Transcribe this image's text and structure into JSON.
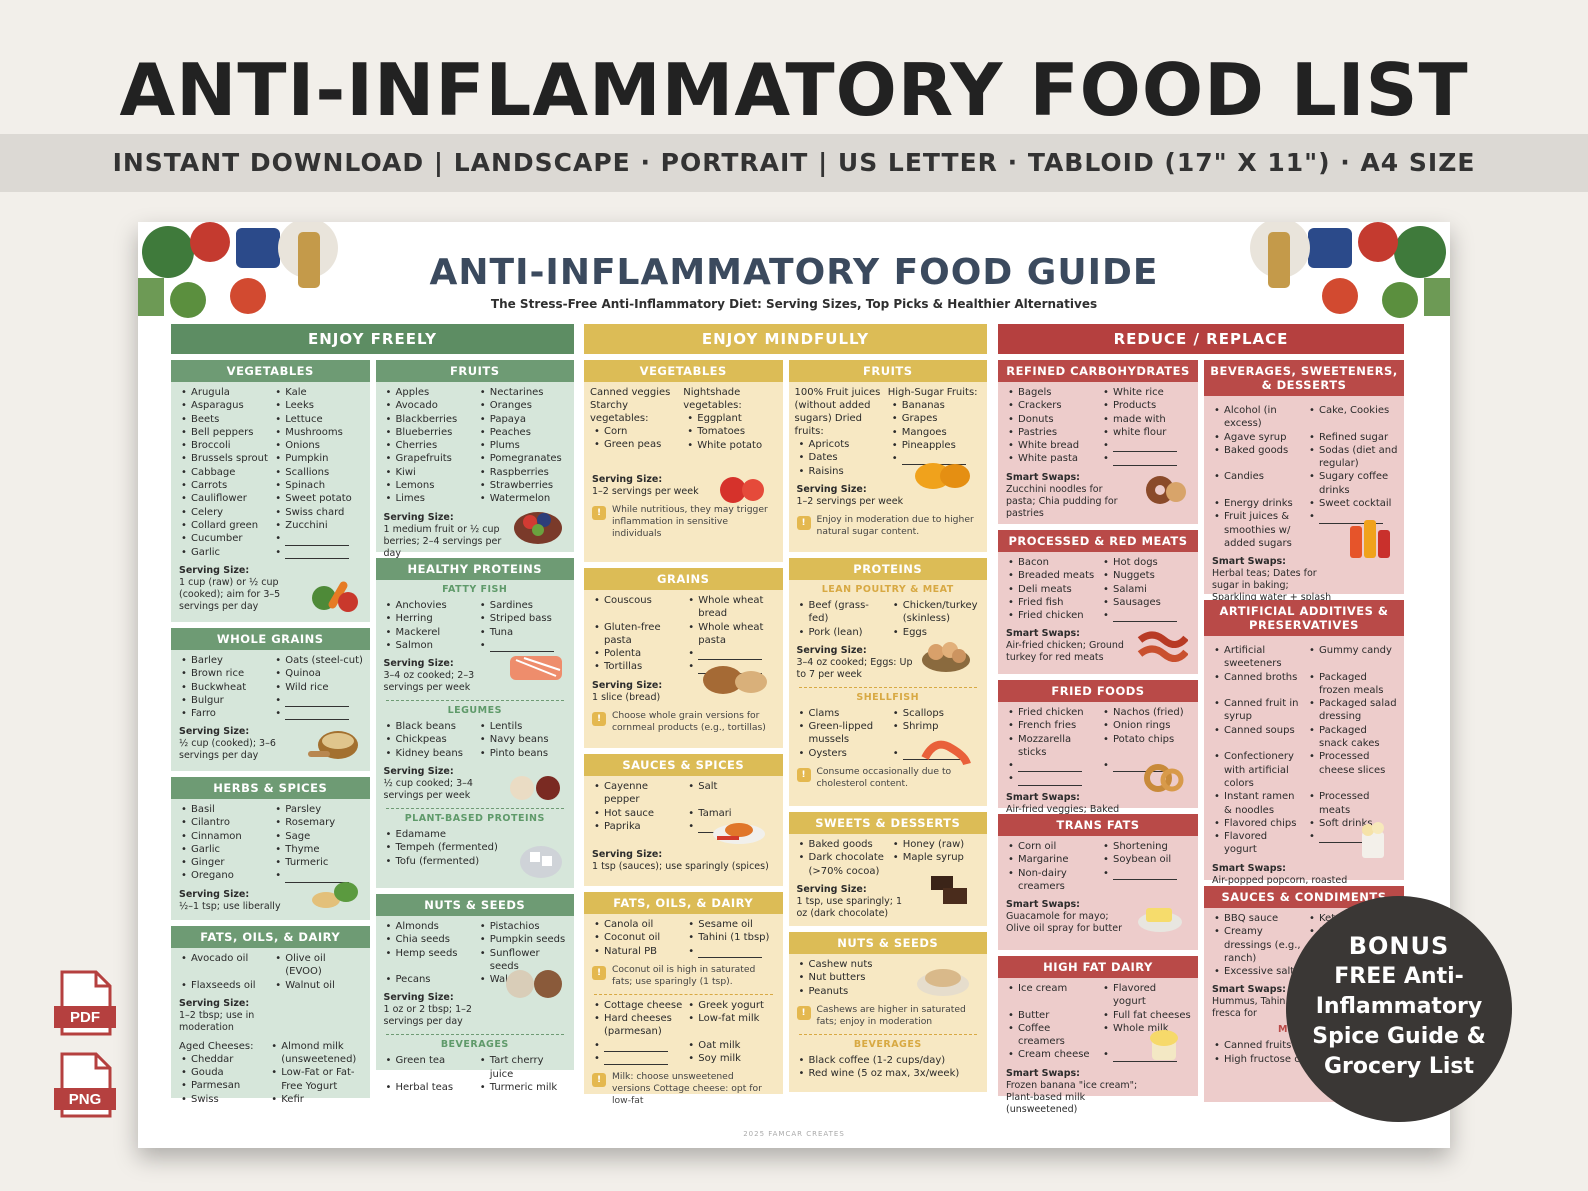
{
  "banner": {
    "title": "ANTI-INFLAMMATORY FOOD LIST",
    "subtitle": "INSTANT DOWNLOAD  |  LANDSCAPE · PORTRAIT  |  US LETTER · TABLOID (17\" X 11\") · A4 SIZE"
  },
  "guide": {
    "title": "ANTI-INFLAMMATORY FOOD GUIDE",
    "subtitle": "The Stress-Free Anti-Inflammatory Diet:  Serving Sizes, Top Picks & Healthier Alternatives",
    "footer": "2025 FAMCAR CREATES"
  },
  "enjoy_freely": {
    "header": "ENJOY FREELY",
    "vegetables": {
      "title": "VEGETABLES",
      "items": [
        "Arugula",
        "Kale",
        "Asparagus",
        "Leeks",
        "Beets",
        "Lettuce",
        "Bell peppers",
        "Mushrooms",
        "Broccoli",
        "Onions",
        "Brussels sprout",
        "Pumpkin",
        "Cabbage",
        "Scallions",
        "Carrots",
        "Spinach",
        "Cauliflower",
        "Sweet potato",
        "Celery",
        "Swiss chard",
        "Collard green",
        "Zucchini",
        "Cucumber",
        "",
        "Garlic",
        ""
      ],
      "serving_label": "Serving Size:",
      "serving": "1 cup (raw) or ½ cup (cooked); aim for 3–5 servings per day"
    },
    "whole_grains": {
      "title": "WHOLE GRAINS",
      "items": [
        "Barley",
        "Oats (steel-cut)",
        "Brown rice",
        "Quinoa",
        "Buckwheat",
        "Wild rice",
        "Bulgur",
        "",
        "Farro",
        ""
      ],
      "serving_label": "Serving Size:",
      "serving": "½ cup (cooked); 3–6 servings per day"
    },
    "herbs": {
      "title": "HERBS & SPICES",
      "items": [
        "Basil",
        "Parsley",
        "Cilantro",
        "Rosemary",
        "Cinnamon",
        "Sage",
        "Garlic",
        "Thyme",
        "Ginger",
        "Turmeric",
        "Oregano",
        ""
      ],
      "serving_label": "Serving Size:",
      "serving": "½–1 tsp; use liberally"
    },
    "fats": {
      "title": "FATS, OILS, & DAIRY",
      "items": [
        "Avocado oil",
        "Olive oil (EVOO)",
        "Flaxseeds oil",
        "Walnut oil"
      ],
      "serving_label": "Serving Size:",
      "serving": "1–2 tbsp; use in moderation",
      "aged_label": "Aged Cheeses:",
      "aged": [
        "Cheddar",
        "Gouda",
        "Parmesan",
        "Swiss"
      ],
      "milks": [
        "Almond milk (unsweetened)",
        "Low-Fat or Fat-Free Yogurt",
        "Kefir"
      ]
    },
    "fruits": {
      "title": "FRUITS",
      "items": [
        "Apples",
        "Nectarines",
        "Avocado",
        "Oranges",
        "Blackberries",
        "Papaya",
        "Blueberries",
        "Peaches",
        "Cherries",
        "Plums",
        "Grapefruits",
        "Pomegranates",
        "Kiwi",
        "Raspberries",
        "Lemons",
        "Strawberries",
        "Limes",
        "Watermelon"
      ],
      "serving_label": "Serving Size:",
      "serving": "1 medium fruit or ½ cup berries; 2–4 servings per day"
    },
    "proteins": {
      "title": "HEALTHY PROTEINS",
      "fish_label": "FATTY FISH",
      "fish": [
        "Anchovies",
        "Sardines",
        "Herring",
        "Striped bass",
        "Mackerel",
        "Tuna",
        "Salmon",
        ""
      ],
      "fish_serving_label": "Serving Size:",
      "fish_serving": "3–4 oz cooked; 2–3 servings per week",
      "legumes_label": "LEGUMES",
      "legumes": [
        "Black beans",
        "Lentils",
        "Chickpeas",
        "Navy beans",
        "Kidney beans",
        "Pinto beans"
      ],
      "legumes_serving_label": "Serving Size:",
      "legumes_serving": "½ cup cooked; 3–4 servings per week",
      "plant_label": "PLANT-BASED PROTEINS",
      "plant": [
        "Edamame",
        "Tempeh (fermented)",
        "Tofu (fermented)"
      ]
    },
    "nuts": {
      "title": "NUTS & SEEDS",
      "items": [
        "Almonds",
        "Pistachios",
        "Chia seeds",
        "Pumpkin seeds",
        "Hemp seeds",
        "Sunflower seeds",
        "Pecans",
        "Walnuts"
      ],
      "serving_label": "Serving Size:",
      "serving": "1 oz or 2 tbsp; 1–2 servings per day",
      "bev_label": "BEVERAGES",
      "bev": [
        "Green tea",
        "Tart cherry juice",
        "Herbal teas",
        "Turmeric milk"
      ]
    }
  },
  "enjoy_mindfully": {
    "header": "ENJOY MINDFULLY",
    "vegetables": {
      "title": "VEGETABLES",
      "left_head": "Canned veggies Starchy vegetables:",
      "left": [
        "Corn",
        "Green peas"
      ],
      "right_head": "Nightshade vegetables:",
      "right": [
        "Eggplant",
        "Tomatoes",
        "White potato"
      ],
      "serving_label": "Serving Size:",
      "serving": "1–2 servings per week",
      "note": "While nutritious, they may trigger inflammation in sensitive individuals"
    },
    "grains": {
      "title": "GRAINS",
      "items": [
        "Couscous",
        "Whole wheat bread",
        "Gluten-free pasta",
        "Whole wheat pasta",
        "Polenta",
        "",
        "Tortillas",
        ""
      ],
      "serving_label": "Serving Size:",
      "serving": "1 slice (bread)",
      "note": "Choose whole grain versions for cornmeal products (e.g., tortillas)"
    },
    "sauces": {
      "title": "SAUCES & SPICES",
      "items": [
        "Cayenne pepper",
        "Salt",
        "Hot sauce",
        "Tamari",
        "Paprika",
        ""
      ],
      "serving_label": "Serving Size:",
      "serving": "1 tsp (sauces); use sparingly (spices)"
    },
    "fats": {
      "title": "FATS, OILS, & DAIRY",
      "items": [
        "Canola oil",
        "Sesame oil",
        "Coconut oil",
        "Tahini (1 tbsp)",
        "Natural PB",
        ""
      ],
      "note1": "Coconut oil is high in saturated fats; use sparingly (1 tsp).",
      "items2": [
        "Cottage cheese",
        "Greek yogurt",
        "Hard cheeses (parmesan)",
        "Low-fat milk",
        "",
        "Oat milk",
        "",
        "Soy milk"
      ],
      "note2": "Milk: choose unsweetened versions Cottage cheese: opt for low-fat"
    },
    "fruits": {
      "title": "FRUITS",
      "left_head": "100% Fruit juices (without added sugars) Dried fruits:",
      "left": [
        "Apricots",
        "Dates",
        "Raisins"
      ],
      "right_head": "High-Sugar Fruits:",
      "right": [
        "Bananas",
        "Grapes",
        "Mangoes",
        "Pineapples",
        ""
      ],
      "serving_label": "Serving Size:",
      "serving": "1–2 servings per week",
      "note": "Enjoy in moderation due to higher natural sugar content."
    },
    "proteins": {
      "title": "PROTEINS",
      "poultry_label": "LEAN POULTRY & MEAT",
      "poultry": [
        "Beef (grass-fed)",
        "Chicken/turkey (skinless)",
        "Pork (lean)",
        "Eggs"
      ],
      "serving_label": "Serving Size:",
      "serving": "3–4 oz cooked; Eggs: Up to 7 per week",
      "shellfish_label": "SHELLFISH",
      "shellfish": [
        "Clams",
        "Scallops",
        "Green-lipped mussels",
        "Shrimp",
        "Oysters",
        ""
      ],
      "note": "Consume occasionally due to cholesterol content."
    },
    "sweets": {
      "title": "SWEETS & DESSERTS",
      "items": [
        "Baked goods",
        "Honey (raw)",
        "Dark chocolate (>70% cocoa)",
        "Maple syrup"
      ],
      "serving_label": "Serving Size:",
      "serving": "1 tsp, use sparingly; 1 oz (dark chocolate)"
    },
    "nuts": {
      "title": "NUTS & SEEDS",
      "items": [
        "Cashew nuts",
        "Nut butters",
        "Peanuts"
      ],
      "note": "Cashews are higher in saturated fats; enjoy in moderation",
      "bev_label": "BEVERAGES",
      "bev": [
        "Black coffee (1-2 cups/day)",
        "Red wine (5 oz max, 3x/week)"
      ]
    }
  },
  "reduce": {
    "header": "REDUCE / REPLACE",
    "refined": {
      "title": "REFINED CARBOHYDRATES",
      "items": [
        "Bagels",
        "White rice",
        "Crackers",
        "Products",
        "Donuts",
        "made with",
        "Pastries",
        "white flour",
        "White bread",
        "",
        "White pasta",
        ""
      ],
      "swap_label": "Smart Swaps:",
      "swap": "Zucchini noodles for pasta; Chia pudding for pastries"
    },
    "processed": {
      "title": "PROCESSED & RED MEATS",
      "items": [
        "Bacon",
        "Hot dogs",
        "Breaded meats",
        "Nuggets",
        "Deli meats",
        "Salami",
        "Fried fish",
        "Sausages",
        "Fried chicken",
        ""
      ],
      "swap_label": "Smart Swaps:",
      "swap": "Air-fried chicken; Ground turkey for red meats"
    },
    "fried": {
      "title": "FRIED FOODS",
      "items": [
        "Fried chicken",
        "Nachos (fried)",
        "French fries",
        "Onion rings",
        "Mozzarella sticks",
        "Potato chips",
        "",
        "",
        ""
      ],
      "swap_label": "Smart Swaps:",
      "swap": "Air-fried veggies; Baked sweet potato wedges"
    },
    "trans": {
      "title": "TRANS FATS",
      "items": [
        "Corn oil",
        "Shortening",
        "Margarine",
        "Soybean oil",
        "Non-dairy creamers",
        ""
      ],
      "swap_label": "Smart Swaps:",
      "swap": "Guacamole for mayo; Olive oil spray for butter"
    },
    "dairy": {
      "title": "HIGH FAT DAIRY",
      "items": [
        "Ice cream",
        "Flavored yogurt",
        "Butter",
        "Full fat cheeses",
        "Coffee creamers",
        "Whole milk",
        "Cream cheese",
        ""
      ],
      "swap_label": "Smart Swaps:",
      "swap": "Frozen banana \"ice cream\"; Plant-based milk (unsweetened)"
    },
    "beverages": {
      "title": "BEVERAGES, SWEETENERS, & DESSERTS",
      "items": [
        "Alcohol (in excess)",
        "Cake, Cookies",
        "Agave syrup",
        "Refined sugar",
        "Baked goods",
        "Sodas (diet and regular)",
        "Candies",
        "Sugary coffee drinks",
        "Energy drinks",
        "Sweet cocktail",
        "Fruit juices & smoothies w/ added sugars",
        ""
      ],
      "swap_label": "Smart Swaps:",
      "swap": "Herbal teas; Dates for sugar in baking; Sparkling water  + splash of juice"
    },
    "additives": {
      "title": "ARTIFICIAL ADDITIVES & PRESERVATIVES",
      "items": [
        "Artificial sweeteners",
        "Gummy candy",
        "Canned broths",
        "Packaged frozen meals",
        "Canned fruit in syrup",
        "Packaged salad dressing",
        "Canned soups",
        "Packaged snack cakes",
        "Confectionery with artificial colors",
        "Processed cheese slices",
        "Instant ramen & noodles",
        "Processed meats",
        "Flavored chips",
        "Soft drinks",
        "Flavored yogurt",
        ""
      ],
      "swap_label": "Smart Swaps:",
      "swap": "Air-popped popcorn, roasted chickpeas, seaweed snacks"
    },
    "sauces": {
      "title": "SAUCES & CONDIMENTS",
      "items": [
        "BBQ sauce",
        "Ketch",
        "Creamy dressings (e.g., ranch)",
        "So",
        "Excessive salt",
        ""
      ],
      "swap_label": "Smart Swaps:",
      "swap": "Hummus, Tahin Salsa fresca for",
      "misc_label": "MISC",
      "misc": [
        "Canned fruits",
        "High fructose corn syrup"
      ]
    }
  },
  "files": {
    "pdf": "PDF",
    "png": "PNG"
  },
  "bonus": {
    "label": "BONUS",
    "text": "FREE Anti-Inflammatory Spice Guide & Grocery List"
  }
}
